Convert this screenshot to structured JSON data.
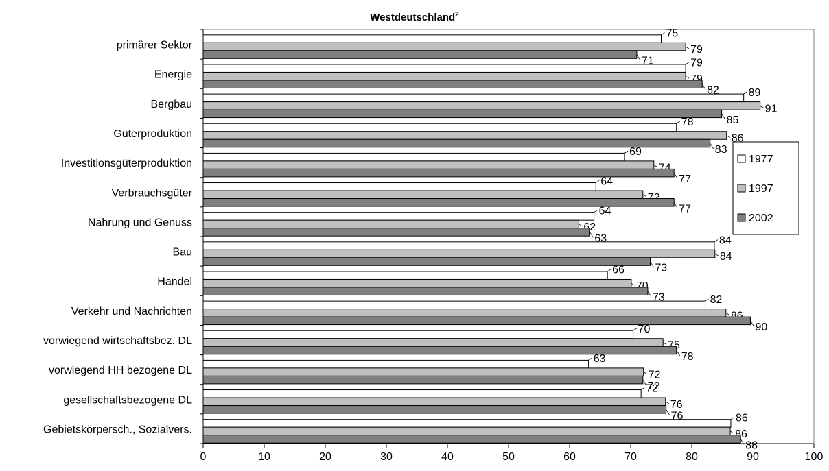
{
  "chart_data": {
    "type": "bar",
    "orientation": "horizontal",
    "title": "Westdeutschland",
    "title_superscript": "2",
    "xlabel": "",
    "ylabel": "",
    "xlim": [
      0,
      100
    ],
    "x_ticks": [
      0,
      10,
      20,
      30,
      40,
      50,
      60,
      70,
      80,
      90,
      100
    ],
    "grid": false,
    "legend_position": "right",
    "categories": [
      "primärer Sektor",
      "Energie",
      "Bergbau",
      "Güterproduktion",
      "Investitionsgüterproduktion",
      "Verbrauchsgüter",
      "Nahrung und Genuss",
      "Bau",
      "Handel",
      "Verkehr und Nachrichten",
      "vorwiegend wirtschaftsbez. DL",
      "vorwiegend HH bezogene DL",
      "gesellschaftsbezogene DL",
      "Gebietskörpersch., Sozialvers."
    ],
    "series": [
      {
        "name": "1977",
        "color": "#ffffff",
        "values": [
          75,
          79,
          88.5,
          77.5,
          69,
          64.3,
          64,
          83.7,
          66.2,
          82.2,
          70.4,
          63.1,
          71.7,
          86.4
        ],
        "labels": [
          "75",
          "79",
          "89",
          "78",
          "69",
          "64",
          "64",
          "84",
          "66",
          "82",
          "70",
          "63",
          "72",
          "86"
        ]
      },
      {
        "name": "1997",
        "color": "#c0c0c0",
        "values": [
          79,
          79,
          91.2,
          85.7,
          73.8,
          72,
          61.5,
          83.8,
          70.1,
          85.6,
          75.3,
          72.1,
          75.7,
          86.3
        ],
        "labels": [
          "79",
          "79",
          "91",
          "86",
          "74",
          "72",
          "62",
          "84",
          "70",
          "86",
          "75",
          "72",
          "76",
          "86"
        ]
      },
      {
        "name": "2002",
        "color": "#808080",
        "values": [
          71,
          81.7,
          84.9,
          83,
          77.1,
          77.1,
          63.3,
          73.2,
          72.8,
          89.6,
          77.5,
          72,
          75.8,
          88
        ],
        "labels": [
          "71",
          "82",
          "85",
          "83",
          "77",
          "77",
          "63",
          "73",
          "73",
          "90",
          "78",
          "72",
          "76",
          "88"
        ]
      }
    ]
  }
}
